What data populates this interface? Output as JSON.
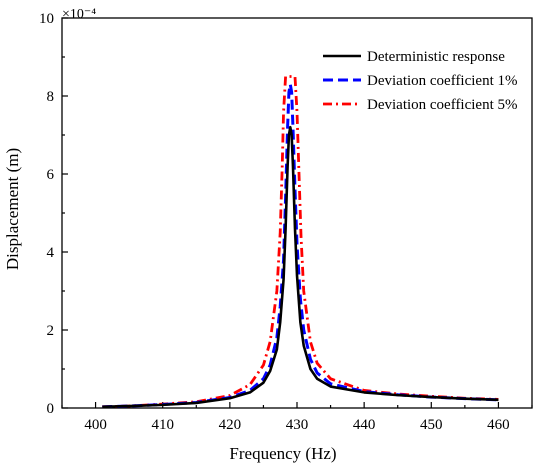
{
  "chart_data": {
    "type": "line",
    "title": "",
    "xlabel": "Frequency (Hz)",
    "ylabel": "Displacement (m)",
    "y_exponent_label": "×10⁻⁴",
    "xlim": [
      395,
      465
    ],
    "ylim": [
      0,
      10
    ],
    "xticks": [
      400,
      410,
      420,
      430,
      440,
      450,
      460
    ],
    "yticks": [
      0,
      2,
      4,
      6,
      8,
      10
    ],
    "grid": false,
    "legend_position": "top-right",
    "series": [
      {
        "name": "Deterministic response",
        "color": "#000000",
        "dash": "solid",
        "x": [
          401,
          405,
          410,
          415,
          420,
          423,
          425,
          426,
          427,
          427.5,
          428,
          428.3,
          428.6,
          428.8,
          429,
          429.2,
          429.4,
          429.7,
          430,
          430.5,
          431,
          432,
          433,
          435,
          440,
          445,
          450,
          455,
          460
        ],
        "y": [
          0.03,
          0.05,
          0.08,
          0.13,
          0.25,
          0.4,
          0.65,
          0.95,
          1.5,
          2.2,
          3.3,
          4.6,
          6.2,
          7.0,
          7.2,
          7.0,
          6.2,
          4.6,
          3.4,
          2.2,
          1.6,
          1.0,
          0.75,
          0.55,
          0.4,
          0.33,
          0.28,
          0.24,
          0.21
        ]
      },
      {
        "name": "Deviation coefficient 1%",
        "color": "#0000ff",
        "dash": "dash",
        "x": [
          401,
          405,
          410,
          415,
          420,
          423,
          425,
          426,
          427,
          427.5,
          428,
          428.3,
          428.6,
          428.8,
          429,
          429.2,
          429.4,
          429.7,
          430,
          430.5,
          431,
          432,
          433,
          435,
          440,
          445,
          450,
          455,
          460
        ],
        "y": [
          0.03,
          0.05,
          0.09,
          0.14,
          0.27,
          0.45,
          0.75,
          1.1,
          1.8,
          2.6,
          3.8,
          5.4,
          7.2,
          8.1,
          8.3,
          8.1,
          7.2,
          5.6,
          4.2,
          2.8,
          2.0,
          1.25,
          0.9,
          0.62,
          0.42,
          0.34,
          0.28,
          0.24,
          0.21
        ]
      },
      {
        "name": "Deviation coefficient 5%",
        "color": "#ff0000",
        "dash": "dashdot",
        "x": [
          401,
          405,
          410,
          415,
          420,
          423,
          425,
          426,
          427,
          427.5,
          427.8,
          428,
          428.3,
          428.6,
          429,
          429.4,
          429.7,
          430,
          430.3,
          430.6,
          431,
          432,
          433,
          435,
          440,
          445,
          450,
          455,
          460
        ],
        "y": [
          0.03,
          0.05,
          0.1,
          0.16,
          0.32,
          0.6,
          1.1,
          1.7,
          3.0,
          4.5,
          6.2,
          7.6,
          8.5,
          8.5,
          8.5,
          8.5,
          8.5,
          7.6,
          6.0,
          4.4,
          3.0,
          1.7,
          1.15,
          0.75,
          0.45,
          0.36,
          0.3,
          0.25,
          0.22
        ]
      }
    ]
  }
}
